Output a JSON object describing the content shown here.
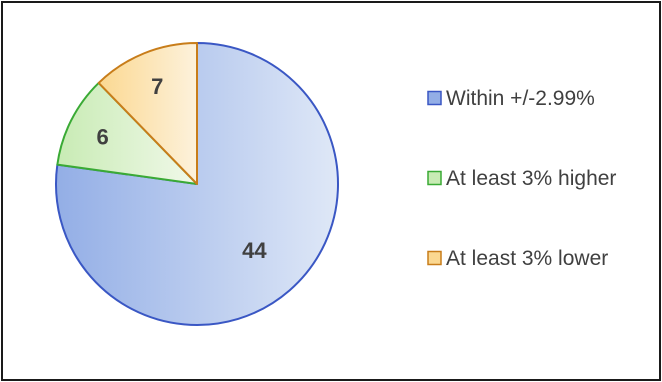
{
  "chart_data": {
    "type": "pie",
    "title": "",
    "categories": [
      "Within +/-2.99%",
      "At least 3% higher",
      "At least 3% lower"
    ],
    "values": [
      44,
      6,
      7
    ],
    "colors": {
      "fill_light": [
        "#dfe8f7",
        "#f1f9ea",
        "#fdf2dc"
      ],
      "fill_dark": [
        "#93aee6",
        "#c8ebb4",
        "#fbd891"
      ],
      "stroke": [
        "#3a57c4",
        "#3aaa35",
        "#c87d1a"
      ]
    },
    "legend_position": "right",
    "data_labels": [
      "44",
      "6",
      "7"
    ]
  }
}
